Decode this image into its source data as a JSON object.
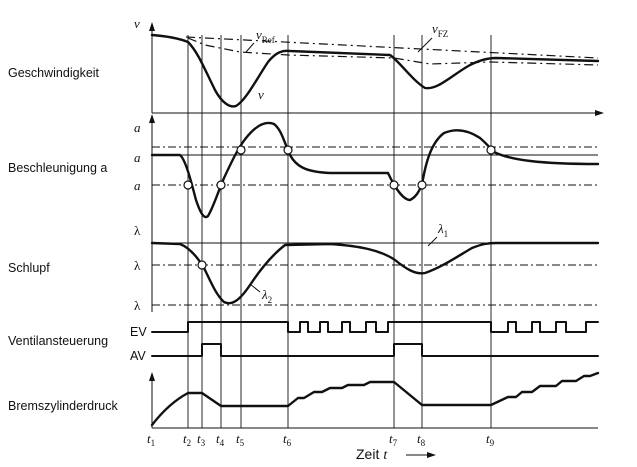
{
  "rows": {
    "speed": "Geschwindigkeit",
    "accel": "Beschleunigung a",
    "slip": "Schlupf",
    "valve": "Ventilansteuerung",
    "pressure": "Bremszylinderdruck"
  },
  "axis_symbols": {
    "v": "v",
    "a_top": "a",
    "a_mid": "a",
    "a_low": "a",
    "lambda_top": "λ",
    "lambda_mid": "λ",
    "lambda_low": "λ"
  },
  "curve_labels": {
    "v_ref_main": "v",
    "v_ref_sub": "Ref",
    "v_fz_main": "v",
    "v_fz_sub": "FZ",
    "v_wheel": "v",
    "lambda1_main": "λ",
    "lambda1_sub": "1",
    "lambda2_main": "λ",
    "lambda2_sub": "2"
  },
  "signals": {
    "ev": "EV",
    "av": "AV"
  },
  "time_axis": {
    "label": "Zeit",
    "symbol": "t",
    "ticks": [
      {
        "main": "t",
        "sub": "1"
      },
      {
        "main": "t",
        "sub": "2"
      },
      {
        "main": "t",
        "sub": "3"
      },
      {
        "main": "t",
        "sub": "4"
      },
      {
        "main": "t",
        "sub": "5"
      },
      {
        "main": "t",
        "sub": "6"
      },
      {
        "main": "t",
        "sub": "7"
      },
      {
        "main": "t",
        "sub": "8"
      },
      {
        "main": "t",
        "sub": "9"
      }
    ]
  }
}
